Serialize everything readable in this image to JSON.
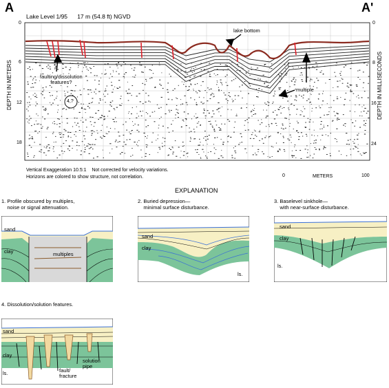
{
  "profile": {
    "label_left": "A",
    "label_right": "A'",
    "header": "Lake Level 1/95      17 m (54.8 ft) NGVD",
    "y_left_label": "DEPTH IN METERS",
    "y_right_label": "DEPTH IN MILLISECONDS",
    "left_ticks": [
      "0",
      "6",
      "12",
      "18"
    ],
    "right_ticks": [
      "0",
      "8",
      "16",
      "24"
    ],
    "annotations": {
      "lake_bottom": "lake bottom",
      "faulting": "faulting/dissolution\nfeatures?",
      "multiple": "multiple",
      "circle": "4,?"
    },
    "note1": "Vertical Exaggeration 10.5:1    Not corrected for velocity variations.",
    "note2": "Horizons are colored to show structure, not correlation.",
    "scale": {
      "start": "0",
      "label": "METERS",
      "end": "100"
    }
  },
  "explanation": {
    "title": "EXPLANATION",
    "panels": [
      {
        "caption": "1. Profile obscured by multiples,\n    noise or signal attenuation.",
        "labels": [
          "sand",
          "clay",
          "multiples"
        ]
      },
      {
        "caption": "2. Buried depression—\n    minimal surface disturbance.",
        "labels": [
          "sand",
          "clay",
          "ls."
        ]
      },
      {
        "caption": "3. Baselevel sinkhole—\n    with near-surface disturbance.",
        "labels": [
          "sand",
          "clay",
          "ls."
        ]
      },
      {
        "caption": "4. Dissolution/solution features.",
        "labels": [
          "sand",
          "clay",
          "ls.",
          "fault/\nfracture",
          "solution\npipe"
        ]
      }
    ]
  },
  "colors": {
    "lake_bottom": "#8b2a1f",
    "fault": "#e0202a",
    "sand": "#f7f0c4",
    "clay": "#7cc49a",
    "water": "#3a6fd6",
    "horizon_brown": "#8a5a2b",
    "multiples_fill": "#d9d9d9"
  }
}
